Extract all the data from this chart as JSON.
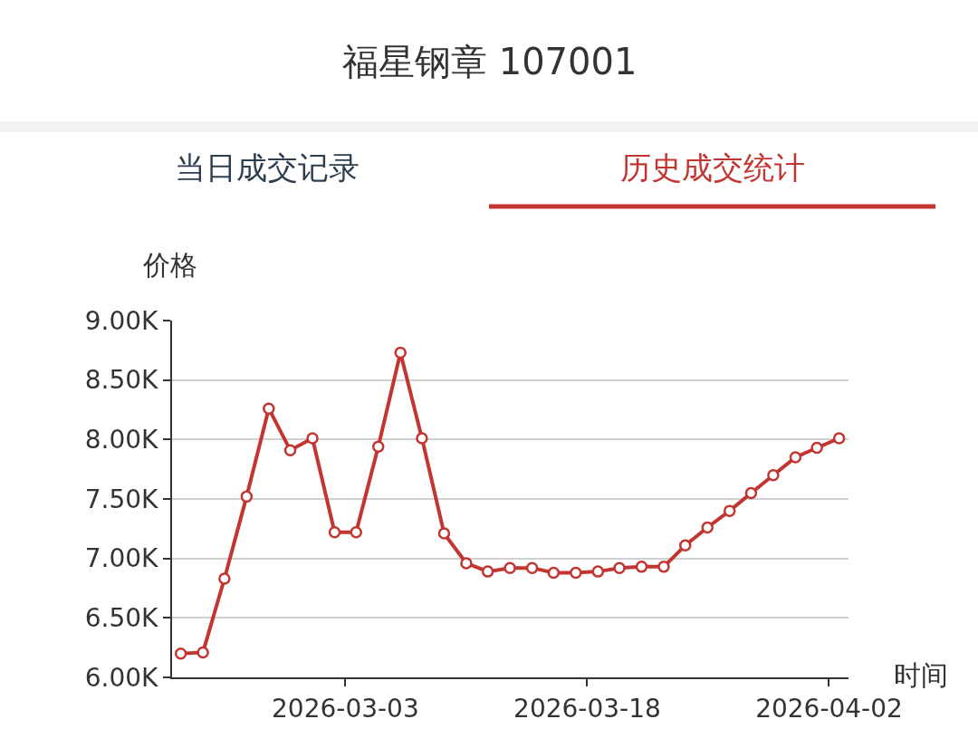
{
  "chart_data": {
    "type": "line",
    "title": "福星钢章 107001",
    "annotations": [
      "当日成交记录",
      "历史成交统计"
    ],
    "ylabel": "价格",
    "xlabel": "时间",
    "x": [
      "2026-02-20T19:00",
      "2026-02-22T04:00",
      "2026-02-23T12:00",
      "2026-02-24T21:00",
      "2026-02-26T06:00",
      "2026-02-27T14:00",
      "2026-02-28T23:00",
      "2026-03-02T08:00",
      "2026-03-03T16:00",
      "2026-03-05T01:00",
      "2026-03-06T10:00",
      "2026-03-07T18:00",
      "2026-03-09T03:00",
      "2026-03-10T12:00",
      "2026-03-11T20:00",
      "2026-03-13T05:00",
      "2026-03-14T14:00",
      "2026-03-15T22:00",
      "2026-03-17T07:00",
      "2026-03-18T16:00",
      "2026-03-20T00:00",
      "2026-03-21T09:00",
      "2026-03-22T18:00",
      "2026-03-24T02:00",
      "2026-03-25T11:00",
      "2026-03-26T20:00",
      "2026-03-28T04:00",
      "2026-03-29T13:00",
      "2026-03-30T22:00",
      "2026-04-01T06:00",
      "2026-04-02T15:00"
    ],
    "series": [
      {
        "color": "#c23531",
        "values": [
          6200,
          6210,
          6830,
          7520,
          8260,
          7910,
          8010,
          7220,
          7220,
          7940,
          8730,
          8010,
          7210,
          6960,
          6890,
          6920,
          6920,
          6880,
          6880,
          6890,
          6920,
          6930,
          6930,
          7110,
          7260,
          7400,
          7550,
          7700,
          7850,
          7930,
          8010
        ]
      }
    ],
    "xlim": [
      "2026-02-20T06:00",
      "2026-04-03T05:00"
    ],
    "xticks": [
      {
        "value": "2026-03-03",
        "label": "2026-03-03"
      },
      {
        "value": "2026-03-18",
        "label": "2026-03-18"
      },
      {
        "value": "2026-04-02",
        "label": "2026-04-02"
      }
    ],
    "ylim": [
      6000,
      9000
    ],
    "yticks": [
      {
        "value": 6000,
        "label": "6.00K"
      },
      {
        "value": 6500,
        "label": "6.50K"
      },
      {
        "value": 7000,
        "label": "7.00K"
      },
      {
        "value": 7500,
        "label": "7.50K"
      },
      {
        "value": 8000,
        "label": "8.00K"
      },
      {
        "value": 8500,
        "label": "8.50K"
      },
      {
        "value": 9000,
        "label": "9.00K"
      }
    ],
    "grid": "y",
    "marker": "circle",
    "line_style": "solid"
  }
}
